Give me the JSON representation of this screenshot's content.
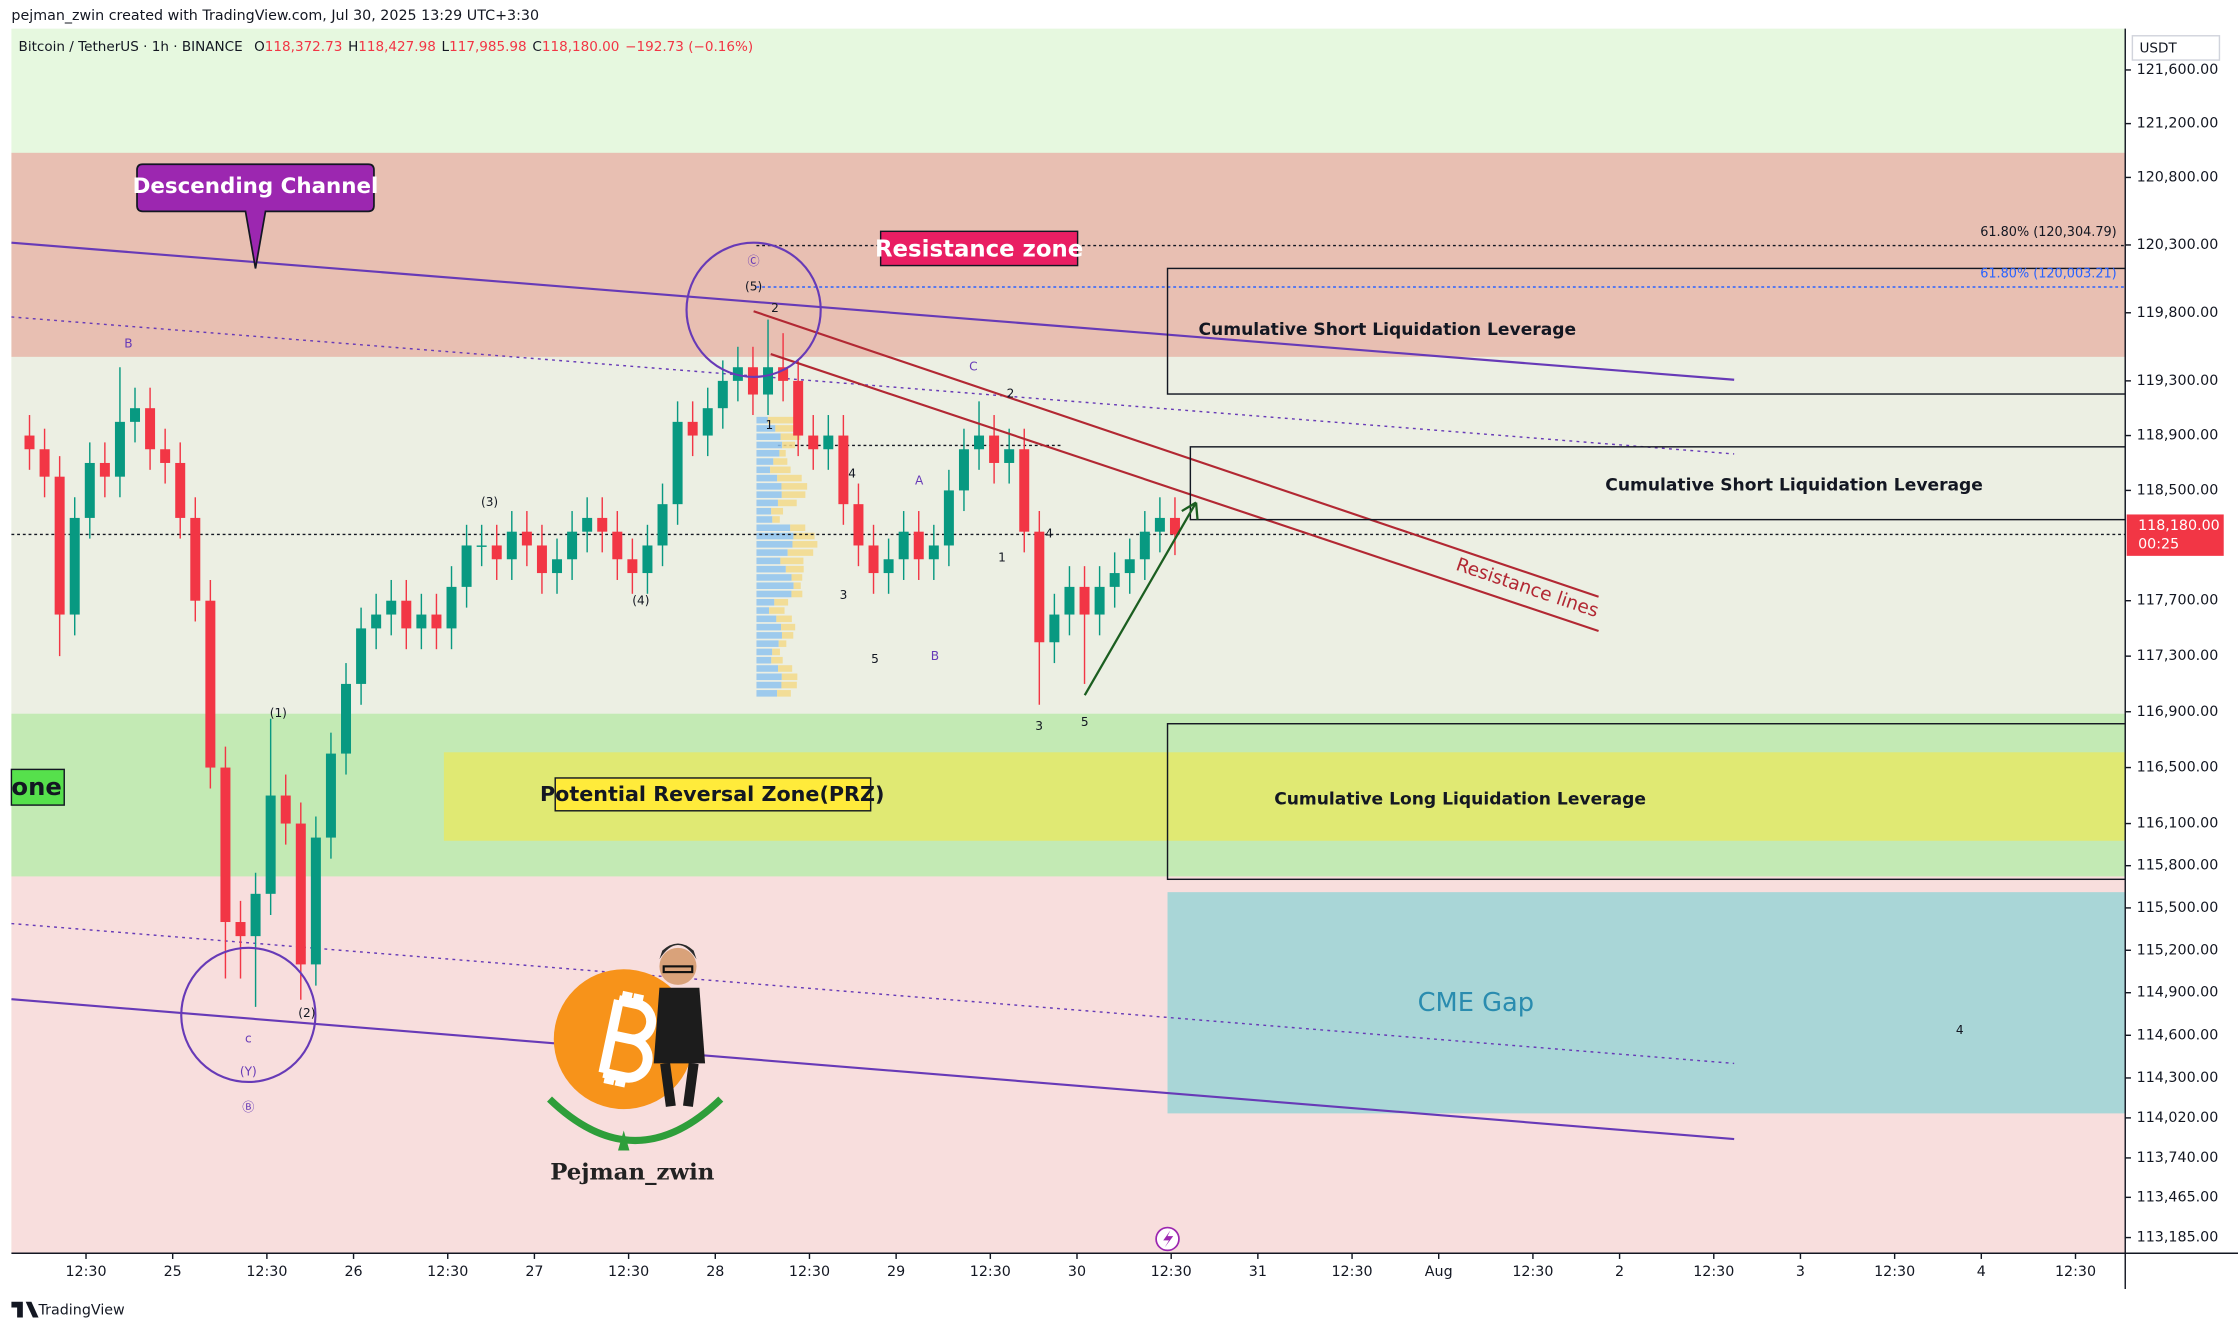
{
  "header": "pejman_zwin created with TradingView.com, Jul 30, 2025 13:29 UTC+3:30",
  "legend": {
    "symbol": "Bitcoin / TetherUS · 1h · BINANCE",
    "ohlc": [
      {
        "label": "O",
        "value": "118,372.73"
      },
      {
        "label": "H",
        "value": "118,427.98"
      },
      {
        "label": "L",
        "value": "117,985.98"
      },
      {
        "label": "C",
        "value": "118,180.00"
      }
    ],
    "change": "−192.73 (−0.16%)"
  },
  "chart_data": {
    "type": "candlestick",
    "log_scale": true,
    "grid": false,
    "up_color": "#089981",
    "down_color": "#f23645",
    "currency": "USDT",
    "last_price": 118180,
    "last_price_label": "118,180.00",
    "countdown": "00:25",
    "xlim": [
      -21.4,
      259.1
    ],
    "ylim": [
      113076,
      121909
    ],
    "x": [
      -19,
      -17,
      -15,
      -13,
      -11,
      -9,
      -7,
      -5,
      -3,
      -1,
      1,
      3,
      5,
      7,
      9,
      11,
      13,
      15,
      17,
      19,
      21,
      23,
      25,
      27,
      29,
      31,
      33,
      35,
      37,
      39,
      41,
      43,
      45,
      47,
      49,
      51,
      53,
      55,
      57,
      59,
      61,
      63,
      65,
      67,
      69,
      71,
      73,
      75,
      77,
      79,
      81,
      83,
      85,
      87,
      89,
      91,
      93,
      95,
      97,
      99,
      101,
      103,
      105,
      107,
      109,
      111,
      113,
      115,
      117,
      119,
      121,
      123,
      125,
      127,
      129,
      131,
      133
    ],
    "open": [
      118900,
      118800,
      118600,
      117600,
      118300,
      118700,
      118600,
      119000,
      119100,
      118800,
      118700,
      118300,
      117700,
      116500,
      115400,
      115300,
      115600,
      116300,
      116100,
      115100,
      116000,
      116600,
      117100,
      117500,
      117600,
      117700,
      117500,
      117600,
      117500,
      117800,
      118100,
      118100,
      118000,
      118200,
      118100,
      117900,
      118000,
      118200,
      118300,
      118200,
      118000,
      117900,
      118100,
      118400,
      119000,
      118900,
      119100,
      119300,
      119400,
      119200,
      119400,
      119300,
      118900,
      118800,
      118900,
      118400,
      118100,
      117900,
      118000,
      118200,
      118000,
      118100,
      118500,
      118800,
      118900,
      118700,
      118800,
      118200,
      117400,
      117600,
      117800,
      117600,
      117800,
      117900,
      118000,
      118200,
      118300
    ],
    "high": [
      119050,
      118950,
      118750,
      118450,
      118850,
      118850,
      119400,
      119250,
      119250,
      118950,
      118850,
      118450,
      117850,
      116650,
      115550,
      115750,
      116850,
      116450,
      116250,
      116150,
      116750,
      117250,
      117650,
      117750,
      117850,
      117850,
      117750,
      117750,
      117950,
      118250,
      118250,
      118250,
      118350,
      118350,
      118250,
      118150,
      118350,
      118450,
      118450,
      118350,
      118150,
      118250,
      118550,
      119150,
      119150,
      119250,
      119450,
      119550,
      119550,
      119750,
      119650,
      119450,
      119050,
      119050,
      119050,
      118550,
      118250,
      118150,
      118350,
      118350,
      118250,
      118650,
      118950,
      119150,
      119050,
      118950,
      118950,
      118350,
      117750,
      117950,
      117950,
      117950,
      118050,
      118150,
      118350,
      118450,
      118450
    ],
    "low": [
      118650,
      118450,
      117300,
      117450,
      118150,
      118450,
      118450,
      118850,
      118650,
      118550,
      118150,
      117550,
      116350,
      115000,
      115000,
      114800,
      115450,
      115950,
      114850,
      114950,
      115850,
      116450,
      116950,
      117350,
      117450,
      117350,
      117350,
      117350,
      117350,
      117650,
      117950,
      117850,
      117850,
      117950,
      117750,
      117750,
      117850,
      118050,
      118050,
      117850,
      117750,
      117750,
      117950,
      118250,
      118750,
      118750,
      118950,
      119150,
      119050,
      119050,
      119150,
      118750,
      118650,
      118650,
      118250,
      117950,
      117750,
      117750,
      117850,
      117850,
      117850,
      117950,
      118350,
      118650,
      118550,
      118550,
      118050,
      116950,
      117250,
      117450,
      117100,
      117450,
      117650,
      117750,
      117850,
      118050,
      118030
    ],
    "close": [
      118800,
      118600,
      117600,
      118300,
      118700,
      118600,
      119000,
      119100,
      118800,
      118700,
      118300,
      117700,
      116500,
      115400,
      115300,
      115600,
      116300,
      116100,
      115100,
      116000,
      116600,
      117100,
      117500,
      117600,
      117700,
      117500,
      117600,
      117500,
      117800,
      118100,
      118100,
      118000,
      118200,
      118100,
      117900,
      118000,
      118200,
      118300,
      118200,
      118000,
      117900,
      118100,
      118400,
      119000,
      118900,
      119100,
      119300,
      119400,
      119200,
      119400,
      119300,
      118900,
      118800,
      118900,
      118400,
      118100,
      117900,
      118000,
      118200,
      118000,
      118100,
      118500,
      118800,
      118900,
      118700,
      118800,
      118200,
      117400,
      117600,
      117800,
      117600,
      117800,
      117900,
      118000,
      118200,
      118300,
      118180
    ],
    "xticks": [
      {
        "value": -11.5,
        "label": "12:30"
      },
      {
        "value": 0,
        "label": "25"
      },
      {
        "value": 12.5,
        "label": "12:30"
      },
      {
        "value": 24,
        "label": "26"
      },
      {
        "value": 36.5,
        "label": "12:30"
      },
      {
        "value": 48,
        "label": "27"
      },
      {
        "value": 60.5,
        "label": "12:30"
      },
      {
        "value": 72,
        "label": "28"
      },
      {
        "value": 84.5,
        "label": "12:30"
      },
      {
        "value": 96,
        "label": "29"
      },
      {
        "value": 108.5,
        "label": "12:30"
      },
      {
        "value": 120,
        "label": "30"
      },
      {
        "value": 132.5,
        "label": "12:30"
      },
      {
        "value": 144,
        "label": "31"
      },
      {
        "value": 156.5,
        "label": "12:30"
      },
      {
        "value": 168,
        "label": "Aug"
      },
      {
        "value": 180.5,
        "label": "12:30"
      },
      {
        "value": 192,
        "label": "2"
      },
      {
        "value": 204.5,
        "label": "12:30"
      },
      {
        "value": 216,
        "label": "3"
      },
      {
        "value": 228.5,
        "label": "12:30"
      },
      {
        "value": 240,
        "label": "4"
      },
      {
        "value": 252.5,
        "label": "12:30"
      }
    ],
    "yticks": [
      {
        "value": 121600,
        "label": "121,600.00"
      },
      {
        "value": 121200,
        "label": "121,200.00"
      },
      {
        "value": 120800,
        "label": "120,800.00"
      },
      {
        "value": 120300,
        "label": "120,300.00"
      },
      {
        "value": 119800,
        "label": "119,800.00"
      },
      {
        "value": 119300,
        "label": "119,300.00"
      },
      {
        "value": 118900,
        "label": "118,900.00"
      },
      {
        "value": 118500,
        "label": "118,500.00"
      },
      {
        "value": 117700,
        "label": "117,700.00"
      },
      {
        "value": 117300,
        "label": "117,300.00"
      },
      {
        "value": 116900,
        "label": "116,900.00"
      },
      {
        "value": 116500,
        "label": "116,500.00"
      },
      {
        "value": 116100,
        "label": "116,100.00"
      },
      {
        "value": 115800,
        "label": "115,800.00"
      },
      {
        "value": 115500,
        "label": "115,500.00"
      },
      {
        "value": 115200,
        "label": "115,200.00"
      },
      {
        "value": 114900,
        "label": "114,900.00"
      },
      {
        "value": 114600,
        "label": "114,600.00"
      },
      {
        "value": 114300,
        "label": "114,300.00"
      },
      {
        "value": 114020,
        "label": "114,020.00"
      },
      {
        "value": 113740,
        "label": "113,740.00"
      },
      {
        "value": 113465,
        "label": "113,465.00"
      },
      {
        "value": 113185,
        "label": "113,185.00"
      }
    ]
  },
  "annotations": {
    "descending_channel": "Descending Channel",
    "resistance_zone": "Resistance zone",
    "short_liq_1": "Cumulative Short Liquidation Leverage",
    "short_liq_2": "Cumulative Short Liquidation Leverage",
    "long_liq": "Cumulative Long Liquidation Leverage",
    "prz": "Potential Reversal Zone(PRZ)",
    "support_zone": "one",
    "cme_gap": "CME Gap",
    "resistance_lines": "Resistance lines",
    "fib_1": "61.80% (120,304.79)",
    "fib_2": "61.80% (120,003.21)",
    "author": "Pejman_zwin"
  },
  "waves": [
    "B",
    "(1)",
    "(2)",
    "c",
    "(Y)",
    "Ⓑ",
    "(3)",
    "(4)",
    "Ⓒ",
    "(5)",
    "2",
    "1",
    "4",
    "3",
    "5",
    "A",
    "B",
    "C",
    "2",
    "1",
    "4",
    "3",
    "5",
    "4"
  ],
  "footer": "TradingView"
}
